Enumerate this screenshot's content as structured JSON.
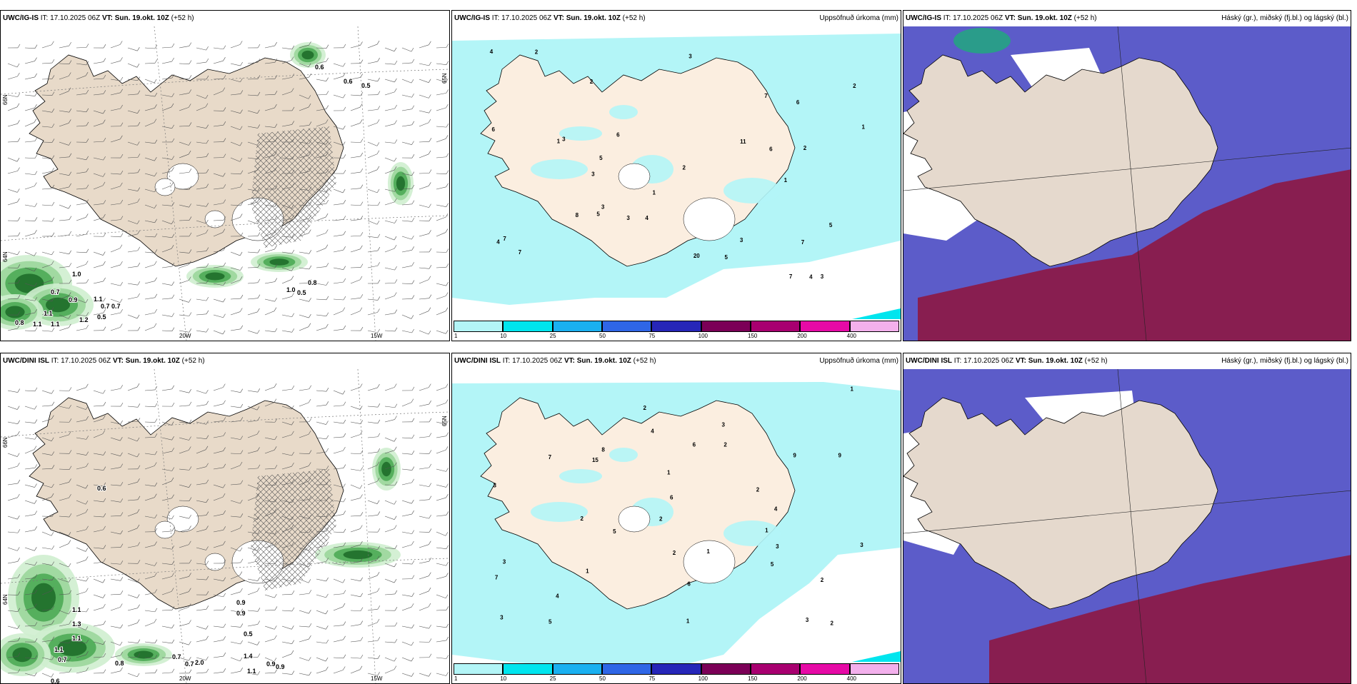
{
  "rows": [
    {
      "model": "UWC/IG-IS",
      "panels": [
        {
          "source": "UWC/IG-IS",
          "it_label": "IT:",
          "it": "17.10.2025 06Z",
          "vt_label": "VT:",
          "vt": "Sun. 19.okt. 10Z",
          "lead": "(+52 h)",
          "right": ""
        },
        {
          "source": "UWC/IG-IS",
          "it_label": "IT:",
          "it": "17.10.2025 06Z",
          "vt_label": "VT:",
          "vt": "Sun. 19.okt. 10Z",
          "lead": "(+52 h)",
          "right": "Uppsöfnuð úrkoma (mm)"
        },
        {
          "source": "UWC/IG-IS",
          "it_label": "IT:",
          "it": "17.10.2025 06Z",
          "vt_label": "VT:",
          "vt": "Sun. 19.okt. 10Z",
          "lead": "(+52 h)",
          "right": "Háský (gr.), miðský (fj.bl.) og lágský (bl.)"
        }
      ],
      "wind_values": [
        "0.6",
        "0.6",
        "0.5",
        "1.0",
        "1.0",
        "0.5",
        "0.8",
        "0.7",
        "0.9",
        "1.1",
        "0.7",
        "0.7",
        "1.1",
        "0.5",
        "1.2",
        "0.8",
        "1.1",
        "1.1"
      ],
      "precip_values": [
        "1",
        "1",
        "2",
        "1",
        "3",
        "2",
        "4",
        "3",
        "5",
        "6",
        "2",
        "3",
        "4",
        "7",
        "5",
        "3",
        "2",
        "1",
        "2",
        "6",
        "4",
        "3",
        "5",
        "8",
        "7",
        "11",
        "20",
        "7",
        "6",
        "4",
        "3",
        "3",
        "7",
        "5",
        "7",
        "6"
      ]
    },
    {
      "model": "UWC/DINI ISL",
      "panels": [
        {
          "source": "UWC/DINI ISL",
          "it_label": "IT:",
          "it": "17.10.2025 06Z",
          "vt_label": "VT:",
          "vt": "Sun. 19.okt. 10Z",
          "lead": "(+52 h)",
          "right": ""
        },
        {
          "source": "UWC/DINI ISL",
          "it_label": "IT:",
          "it": "17.10.2025 06Z",
          "vt_label": "VT:",
          "vt": "Sun. 19.okt. 10Z",
          "lead": "(+52 h)",
          "right": "Uppsöfnuð úrkoma (mm)"
        },
        {
          "source": "UWC/DINI ISL",
          "it_label": "IT:",
          "it": "17.10.2025 06Z",
          "vt_label": "VT:",
          "vt": "Sun. 19.okt. 10Z",
          "lead": "(+52 h)",
          "right": "Háský (gr.), miðský (fj.bl.) og lágský (bl.)"
        }
      ],
      "wind_values": [
        "0.6",
        "0.9",
        "0.5",
        "1.1",
        "1.3",
        "1.1",
        "0.7",
        "0.6",
        "0.9",
        "1.4",
        "0.7",
        "1.1",
        "0.8",
        "0.7",
        "0.9",
        "1.1",
        "0.9",
        "2.0"
      ],
      "precip_values": [
        "1",
        "2",
        "3",
        "1",
        "4",
        "2",
        "5",
        "6",
        "3",
        "2",
        "4",
        "7",
        "3",
        "1",
        "2",
        "5",
        "8",
        "4",
        "3",
        "9",
        "6",
        "2",
        "3",
        "5",
        "7",
        "3",
        "2",
        "1",
        "15",
        "9",
        "6",
        "3",
        "2",
        "1",
        "1",
        "2"
      ]
    }
  ],
  "grid_labels": {
    "lat_66": "66N",
    "lat_64": "64N",
    "lon_20": "20W",
    "lon_15": "15W",
    "lat_65": "65N"
  },
  "colorbar": {
    "ticks": [
      "1",
      "10",
      "25",
      "50",
      "75",
      "100",
      "150",
      "200",
      "400"
    ],
    "colors": [
      "#b3f5f7",
      "#00e5ee",
      "#1ab0f0",
      "#2f66e6",
      "#2626b8",
      "#7b0057",
      "#a80070",
      "#e60aa6",
      "#f3b0ec"
    ]
  },
  "colors": {
    "land": "#ecdccb",
    "precip_light": "#b3f5f7",
    "wind_green": "#2e9b3e",
    "cloud_high": "#e5d9cd",
    "cloud_mid": "#5c5cc9",
    "cloud_low": "#8a1a4a"
  }
}
